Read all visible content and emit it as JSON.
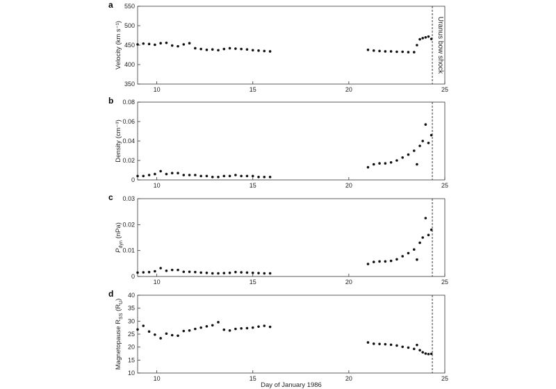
{
  "figure": {
    "xlabel": "Day of January 1986",
    "x_ticks": [
      10,
      15,
      20,
      25
    ],
    "xlim": [
      9,
      25
    ],
    "shock_day": 24.35,
    "shock_label": "Uranus bow shock"
  },
  "chart_data": [
    {
      "type": "scatter",
      "letter": "a",
      "ylabel": "Velocity (km s⁻¹)",
      "ylim": [
        350,
        550
      ],
      "y_ticks": [
        "350",
        "400",
        "450",
        "500",
        "550"
      ],
      "segments": [
        {
          "x": [
            9.0,
            9.3,
            9.6,
            9.9,
            10.2,
            10.5,
            10.8,
            11.1,
            11.4,
            11.7,
            12.0,
            12.3,
            12.6,
            12.9,
            13.2,
            13.5,
            13.8,
            14.1,
            14.4,
            14.7,
            15.0,
            15.3,
            15.6,
            15.9
          ],
          "y": [
            452,
            454,
            453,
            451,
            455,
            456,
            449,
            447,
            452,
            455,
            442,
            440,
            438,
            439,
            437,
            440,
            442,
            441,
            440,
            439,
            437,
            436,
            435,
            434
          ]
        },
        {
          "x": [
            21.0,
            21.3,
            21.6,
            21.9,
            22.2,
            22.5,
            22.8,
            23.1,
            23.4,
            23.55,
            23.7,
            23.85,
            24.0,
            24.15,
            24.3
          ],
          "y": [
            438,
            436,
            435,
            434,
            434,
            433,
            433,
            432,
            432,
            450,
            465,
            468,
            470,
            472,
            466
          ]
        }
      ]
    },
    {
      "type": "scatter",
      "letter": "b",
      "ylabel": "Density (cm⁻³)",
      "ylim": [
        0,
        0.08
      ],
      "y_ticks": [
        "0",
        "0.02",
        "0.04",
        "0.06",
        "0.08"
      ],
      "segments": [
        {
          "x": [
            9.0,
            9.3,
            9.6,
            9.9,
            10.2,
            10.5,
            10.8,
            11.1,
            11.4,
            11.7,
            12.0,
            12.3,
            12.6,
            12.9,
            13.2,
            13.5,
            13.8,
            14.1,
            14.4,
            14.7,
            15.0,
            15.3,
            15.6,
            15.9
          ],
          "y": [
            0.004,
            0.004,
            0.005,
            0.006,
            0.009,
            0.006,
            0.007,
            0.007,
            0.005,
            0.005,
            0.005,
            0.004,
            0.004,
            0.003,
            0.003,
            0.004,
            0.004,
            0.005,
            0.004,
            0.004,
            0.004,
            0.003,
            0.003,
            0.003
          ]
        },
        {
          "x": [
            21.0,
            21.3,
            21.6,
            21.9,
            22.2,
            22.5,
            22.8,
            23.1,
            23.4,
            23.55,
            23.7,
            23.85,
            24.0,
            24.15,
            24.3
          ],
          "y": [
            0.013,
            0.016,
            0.017,
            0.017,
            0.018,
            0.02,
            0.023,
            0.026,
            0.03,
            0.016,
            0.035,
            0.04,
            0.057,
            0.038,
            0.046
          ]
        }
      ]
    },
    {
      "type": "scatter",
      "letter": "c",
      "ylabel_main": "P",
      "ylabel_sub": "dyn",
      "ylabel_rest": " (nPa)",
      "ylim": [
        0,
        0.03
      ],
      "y_ticks": [
        "0",
        "0.01",
        "0.02",
        "0.03"
      ],
      "segments": [
        {
          "x": [
            9.0,
            9.3,
            9.6,
            9.9,
            10.2,
            10.5,
            10.8,
            11.1,
            11.4,
            11.7,
            12.0,
            12.3,
            12.6,
            12.9,
            13.2,
            13.5,
            13.8,
            14.1,
            14.4,
            14.7,
            15.0,
            15.3,
            15.6,
            15.9
          ],
          "y": [
            0.0015,
            0.0016,
            0.0017,
            0.002,
            0.0032,
            0.0022,
            0.0025,
            0.0025,
            0.0018,
            0.0018,
            0.0017,
            0.0015,
            0.0014,
            0.0012,
            0.0012,
            0.0013,
            0.0014,
            0.0017,
            0.0016,
            0.0015,
            0.0014,
            0.0013,
            0.0012,
            0.0012
          ]
        },
        {
          "x": [
            21.0,
            21.3,
            21.6,
            21.9,
            22.2,
            22.5,
            22.8,
            23.1,
            23.4,
            23.55,
            23.7,
            23.85,
            24.0,
            24.15,
            24.3
          ],
          "y": [
            0.0048,
            0.0056,
            0.0058,
            0.0058,
            0.006,
            0.0066,
            0.0078,
            0.009,
            0.0104,
            0.0065,
            0.013,
            0.015,
            0.0225,
            0.016,
            0.018
          ]
        }
      ]
    },
    {
      "type": "scatter",
      "letter": "d",
      "ylabel_main": "Magnetopause R",
      "ylabel_sub": "SS",
      "ylabel_rest": " (R",
      "ylabel_sub2": "U",
      "ylabel_end": ")",
      "ylim": [
        10,
        40
      ],
      "y_ticks": [
        "10",
        "15",
        "20",
        "25",
        "30",
        "35",
        "40"
      ],
      "segments": [
        {
          "x": [
            9.0,
            9.3,
            9.6,
            9.9,
            10.2,
            10.5,
            10.8,
            11.1,
            11.4,
            11.7,
            12.0,
            12.3,
            12.6,
            12.9,
            13.2,
            13.5,
            13.8,
            14.1,
            14.4,
            14.7,
            15.0,
            15.3,
            15.6,
            15.9
          ],
          "y": [
            26.8,
            28.2,
            26.0,
            24.8,
            23.4,
            25.2,
            24.6,
            24.4,
            26.2,
            26.4,
            27.0,
            27.5,
            28.0,
            28.4,
            29.6,
            26.7,
            26.4,
            27.0,
            27.2,
            27.3,
            27.5,
            27.9,
            28.2,
            27.8
          ]
        },
        {
          "x": [
            21.0,
            21.3,
            21.6,
            21.9,
            22.2,
            22.5,
            22.8,
            23.1,
            23.4,
            23.55,
            23.7,
            23.85,
            24.0,
            24.15,
            24.3
          ],
          "y": [
            21.8,
            21.3,
            21.2,
            21.1,
            20.9,
            20.6,
            20.1,
            19.8,
            19.3,
            20.8,
            18.8,
            18.0,
            17.5,
            17.3,
            17.4
          ]
        }
      ]
    }
  ]
}
